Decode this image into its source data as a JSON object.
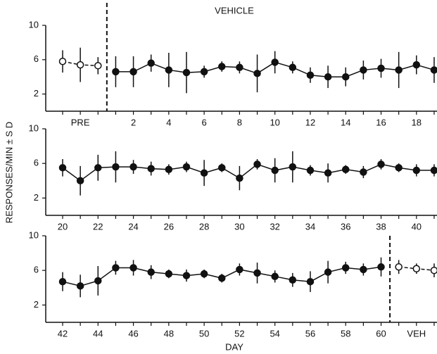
{
  "chart_data": [
    {
      "type": "errorline",
      "title": "VEHICLE",
      "categories": [
        null,
        "PRE",
        null,
        null,
        "2",
        null,
        "4",
        null,
        "6",
        null,
        "8",
        null,
        "10",
        null,
        "12",
        null,
        "14",
        null,
        "16",
        null,
        "18",
        null
      ],
      "series": [
        {
          "marker": "open",
          "color": "#111111",
          "values": [
            5.8,
            5.4,
            5.3,
            null,
            null,
            null,
            null,
            null,
            null,
            null,
            null,
            null,
            null,
            null,
            null,
            null,
            null,
            null,
            null,
            null,
            null,
            null
          ],
          "errors": [
            1.3,
            2.0,
            1.0,
            null,
            null,
            null,
            null,
            null,
            null,
            null,
            null,
            null,
            null,
            null,
            null,
            null,
            null,
            null,
            null,
            null,
            null,
            null
          ]
        },
        {
          "marker": "filled",
          "color": "#111111",
          "values": [
            null,
            null,
            null,
            4.6,
            4.6,
            5.6,
            4.8,
            4.5,
            4.6,
            5.2,
            5.1,
            4.4,
            5.7,
            5.1,
            4.2,
            4.0,
            4.0,
            4.8,
            5.0,
            4.8,
            5.4,
            4.8
          ],
          "errors": [
            null,
            null,
            null,
            1.8,
            1.8,
            1.0,
            2.0,
            2.4,
            0.7,
            0.6,
            0.7,
            2.2,
            1.3,
            0.7,
            0.9,
            1.3,
            1.1,
            1.1,
            1.1,
            2.1,
            1.1,
            1.5
          ]
        }
      ],
      "ylim": [
        0,
        10
      ],
      "yticks": [
        2,
        6,
        10
      ]
    },
    {
      "type": "errorline",
      "ylabel": "RESPONSES/MIN ± S D",
      "categories": [
        "20",
        null,
        "22",
        null,
        "24",
        null,
        "26",
        null,
        "28",
        null,
        "30",
        null,
        "32",
        null,
        "34",
        null,
        "36",
        null,
        "38",
        null,
        "40",
        null
      ],
      "series": [
        {
          "marker": "filled",
          "color": "#111111",
          "values": [
            5.5,
            4.0,
            5.5,
            5.6,
            5.6,
            5.4,
            5.3,
            5.6,
            4.9,
            5.5,
            4.3,
            5.9,
            5.2,
            5.6,
            5.2,
            4.9,
            5.3,
            5.0,
            5.9,
            5.5,
            5.2,
            5.2
          ],
          "errors": [
            1.0,
            1.7,
            1.5,
            1.8,
            0.8,
            0.8,
            0.6,
            0.6,
            1.5,
            0.5,
            1.4,
            0.6,
            1.4,
            1.8,
            0.6,
            1.1,
            0.5,
            0.7,
            0.6,
            0.5,
            0.7,
            0.7
          ]
        }
      ],
      "ylim": [
        0,
        10
      ],
      "yticks": [
        2,
        6,
        10
      ]
    },
    {
      "type": "errorline",
      "xlabel": "DAY",
      "categories": [
        "42",
        null,
        "44",
        null,
        "46",
        null,
        "48",
        null,
        "50",
        null,
        "52",
        null,
        "54",
        null,
        "56",
        null,
        "58",
        null,
        "60",
        null,
        "VEH",
        null
      ],
      "series": [
        {
          "marker": "filled",
          "color": "#111111",
          "values": [
            4.7,
            4.2,
            4.8,
            6.3,
            6.3,
            5.8,
            5.6,
            5.4,
            5.6,
            5.1,
            6.1,
            5.7,
            5.3,
            4.9,
            4.7,
            5.8,
            6.3,
            6.1,
            6.4,
            null,
            null,
            null
          ],
          "errors": [
            1.1,
            1.3,
            1.7,
            0.8,
            0.9,
            0.8,
            0.5,
            0.7,
            0.5,
            0.5,
            0.7,
            1.2,
            0.7,
            0.8,
            1.2,
            1.3,
            0.7,
            0.7,
            1.1,
            null,
            null,
            null
          ]
        },
        {
          "marker": "open",
          "color": "#111111",
          "values": [
            null,
            null,
            null,
            null,
            null,
            null,
            null,
            null,
            null,
            null,
            null,
            null,
            null,
            null,
            null,
            null,
            null,
            null,
            null,
            6.4,
            6.2,
            6.0
          ],
          "errors": [
            null,
            null,
            null,
            null,
            null,
            null,
            null,
            null,
            null,
            null,
            null,
            null,
            null,
            null,
            null,
            null,
            null,
            null,
            null,
            0.8,
            0.6,
            0.8
          ]
        }
      ],
      "ylim": [
        0,
        10
      ],
      "yticks": [
        2,
        6,
        10
      ]
    }
  ]
}
